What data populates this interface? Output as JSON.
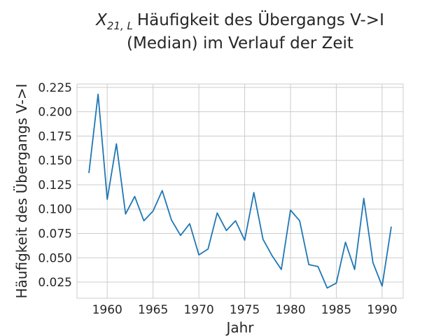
{
  "chart_data": {
    "type": "line",
    "title_math": "X",
    "title_math_sub": "21, L",
    "title_line1_rest": "Häufigkeit des Übergangs V->I",
    "title_line2": "(Median) im Verlauf der Zeit",
    "xlabel": "Jahr",
    "ylabel": "Häufigkeit des Übergangs V->I",
    "xlim": [
      1956.7,
      1992.3
    ],
    "ylim": [
      0.0085,
      0.2285
    ],
    "x_ticks": [
      1960,
      1965,
      1970,
      1975,
      1980,
      1985,
      1990
    ],
    "y_ticks": [
      0.025,
      0.05,
      0.075,
      0.1,
      0.125,
      0.15,
      0.175,
      0.2,
      0.225
    ],
    "y_tick_labels": [
      "0.025",
      "0.050",
      "0.075",
      "0.100",
      "0.125",
      "0.150",
      "0.175",
      "0.200",
      "0.225"
    ],
    "grid": true,
    "line_color": "#1f77b4",
    "series": [
      {
        "x": [
          1958,
          1959,
          1960,
          1961,
          1962,
          1963,
          1964,
          1965,
          1966,
          1967,
          1968,
          1969,
          1970,
          1971,
          1972,
          1973,
          1974,
          1975,
          1976,
          1977,
          1978,
          1979,
          1980,
          1981,
          1982,
          1983,
          1984,
          1985,
          1986,
          1987,
          1988,
          1989,
          1990,
          1991
        ],
        "y": [
          0.137,
          0.218,
          0.11,
          0.167,
          0.095,
          0.113,
          0.088,
          0.098,
          0.119,
          0.089,
          0.073,
          0.085,
          0.053,
          0.059,
          0.096,
          0.078,
          0.088,
          0.068,
          0.117,
          0.069,
          0.052,
          0.038,
          0.099,
          0.088,
          0.043,
          0.041,
          0.019,
          0.024,
          0.066,
          0.038,
          0.111,
          0.045,
          0.021,
          0.082
        ]
      }
    ]
  }
}
